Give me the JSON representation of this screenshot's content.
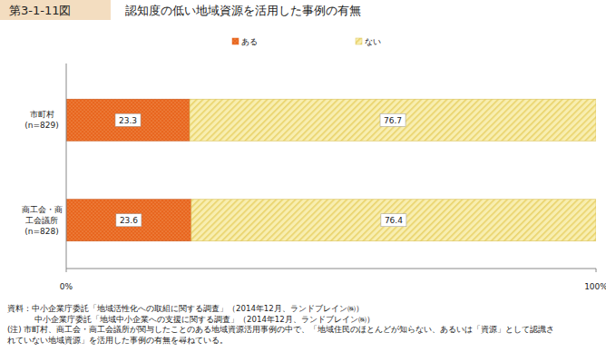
{
  "chart_data": {
    "type": "bar",
    "orientation": "horizontal",
    "stacked": true,
    "data_labels": true,
    "figure_label": "第3-1-11図",
    "title": "認知度の低い地域資源を活用した事例の有無",
    "categories": [
      "市町村\n(n=829)",
      "商工会・商\n工会議所\n(n=828)"
    ],
    "series": [
      {
        "name": "ある",
        "color": "#e8661f",
        "values": [
          23.3,
          23.6
        ]
      },
      {
        "name": "ない",
        "color": "#f8eeb0",
        "values": [
          76.7,
          76.4
        ]
      }
    ],
    "xlim": [
      0,
      100
    ],
    "xticks": [
      {
        "value": 0,
        "label": "0%"
      },
      {
        "value": 100,
        "label": "100%"
      }
    ],
    "grid": false,
    "legend": "top",
    "annotations": [
      "資料：中小企業庁委託「地域活性化への取組に関する調査」（2014年12月、ランドブレイン㈱）",
      "中小企業庁委託「地域中小企業への支援に関する調査」（2014年12月、ランドブレイン㈱）",
      "(注) 市町村、商工会・商工会議所が関与したことのある地域資源活用事例の中で、「地域住民のほとんどが知らない、あるいは「資源」として認識さ",
      "れていない地域資源」を活用した事例の有無を尋ねている。"
    ]
  }
}
